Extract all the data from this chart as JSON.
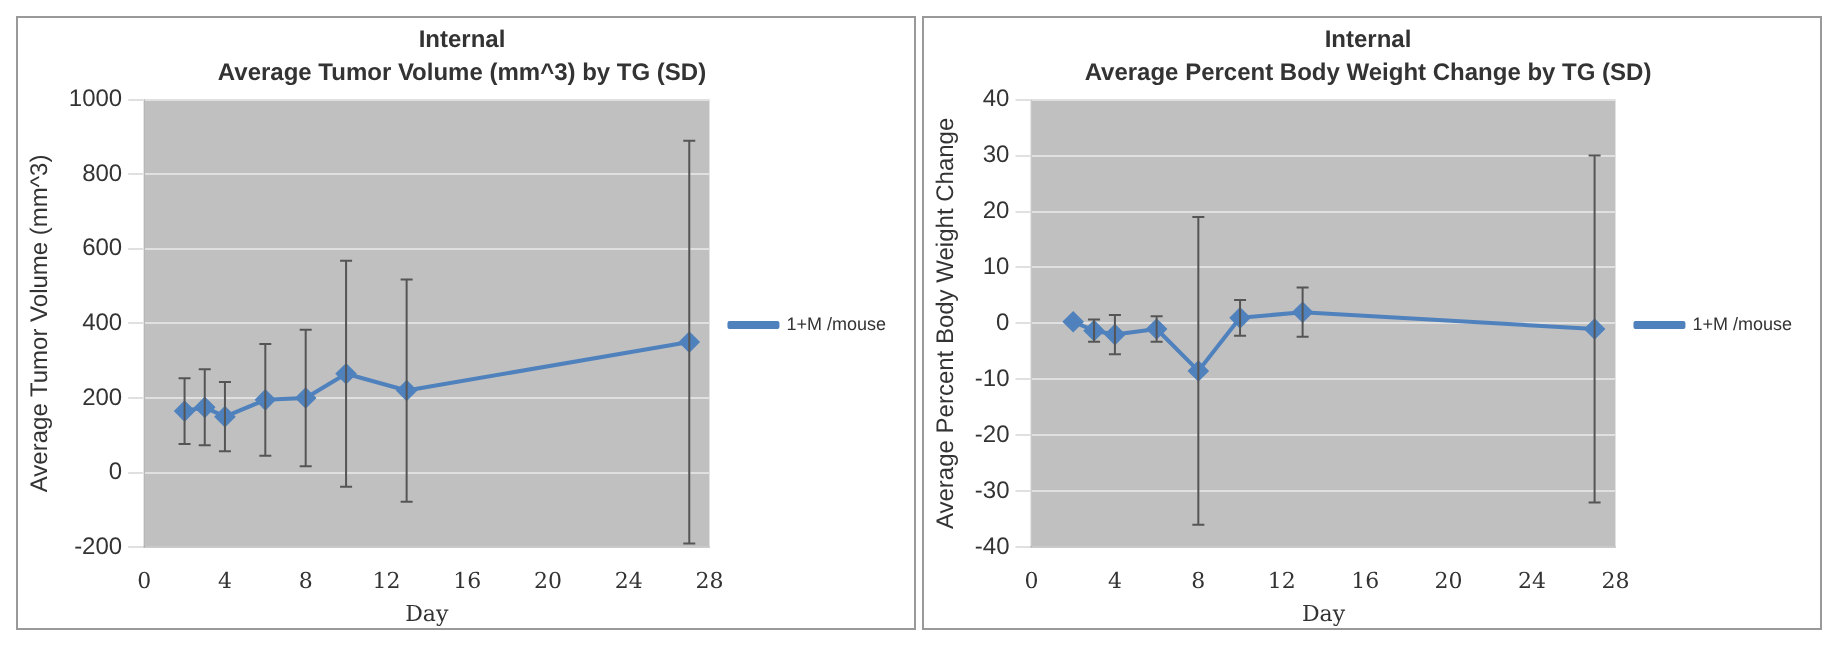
{
  "chart_data": [
    {
      "type": "line",
      "title": "Internal",
      "subtitle": "Average Tumor Volume (mm^3) by TG (SD)",
      "xlabel": "Day",
      "ylabel": "Average Tumor Volume (mm^3)",
      "x": [
        2,
        3,
        4,
        6,
        8,
        10,
        13,
        27
      ],
      "series": [
        {
          "name": "1+M /mouse",
          "color": "#4f81bd",
          "values": [
            165,
            175,
            150,
            195,
            200,
            265,
            220,
            350
          ],
          "errors": [
            88,
            102,
            93,
            150,
            183,
            303,
            298,
            540
          ]
        }
      ],
      "xlim": [
        0,
        28
      ],
      "xticks": [
        0,
        4,
        8,
        12,
        16,
        20,
        24,
        28
      ],
      "ylim": [
        -200,
        1000
      ],
      "yticks": [
        -200,
        0,
        200,
        400,
        600,
        800,
        1000
      ],
      "grid": "y",
      "legend": "right",
      "marker": "diamond",
      "line_style": "solid"
    },
    {
      "type": "line",
      "title": "Internal",
      "subtitle": "Average Percent Body Weight Change by TG (SD)",
      "xlabel": "Day",
      "ylabel": "Average Percent Body Weight Change",
      "x": [
        2,
        3,
        4,
        6,
        8,
        10,
        13,
        27
      ],
      "series": [
        {
          "name": "1+M /mouse",
          "color": "#4f81bd",
          "values": [
            0.3,
            -1.3,
            -2,
            -1,
            -8.5,
            1,
            2,
            -1
          ],
          "errors": [
            null,
            2,
            3.5,
            2.3,
            27.5,
            3.2,
            4.4,
            31
          ]
        }
      ],
      "xlim": [
        0,
        28
      ],
      "xticks": [
        0,
        4,
        8,
        12,
        16,
        20,
        24,
        28
      ],
      "ylim": [
        -40,
        40
      ],
      "yticks": [
        -40,
        -30,
        -20,
        -10,
        0,
        10,
        20,
        30,
        40
      ],
      "grid": "y",
      "legend": "right",
      "marker": "diamond",
      "line_style": "solid"
    }
  ]
}
